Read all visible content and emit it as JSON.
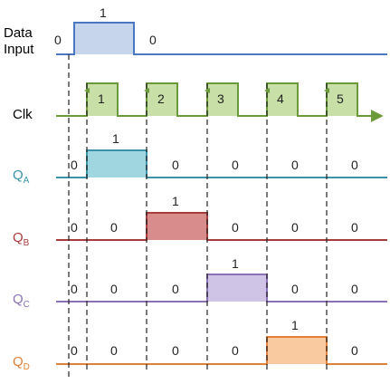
{
  "labels": {
    "data_line1": "Data",
    "data_line2": "Input",
    "clk": "Clk",
    "qa_main": "Q",
    "qa_sub": "A",
    "qb_main": "Q",
    "qb_sub": "B",
    "qc_main": "Q",
    "qc_sub": "C",
    "qd_main": "Q",
    "qd_sub": "D"
  },
  "colors": {
    "data": "#4a78c0",
    "data_fill": "#c6d5eb",
    "clk": "#6a9a3a",
    "clk_fill": "#c8dfa8",
    "qa": "#3a93a8",
    "qa_fill": "#9fd6e0",
    "qb": "#a63c3c",
    "qb_fill": "#d88c8c",
    "qc": "#8b72b8",
    "qc_fill": "#cfc3e6",
    "qd": "#e0803a",
    "qd_fill": "#f9c9a0"
  },
  "data_values": [
    "0",
    "1",
    "0"
  ],
  "clock_pulses": [
    "1",
    "2",
    "3",
    "4",
    "5"
  ],
  "qa_values": [
    "0",
    "1",
    "0",
    "0",
    "0",
    "0"
  ],
  "qb_values": [
    "0",
    "0",
    "1",
    "0",
    "0",
    "0"
  ],
  "qc_values": [
    "0",
    "0",
    "0",
    "1",
    "0",
    "0"
  ],
  "qd_values": [
    "0",
    "0",
    "0",
    "0",
    "1",
    "0"
  ]
}
